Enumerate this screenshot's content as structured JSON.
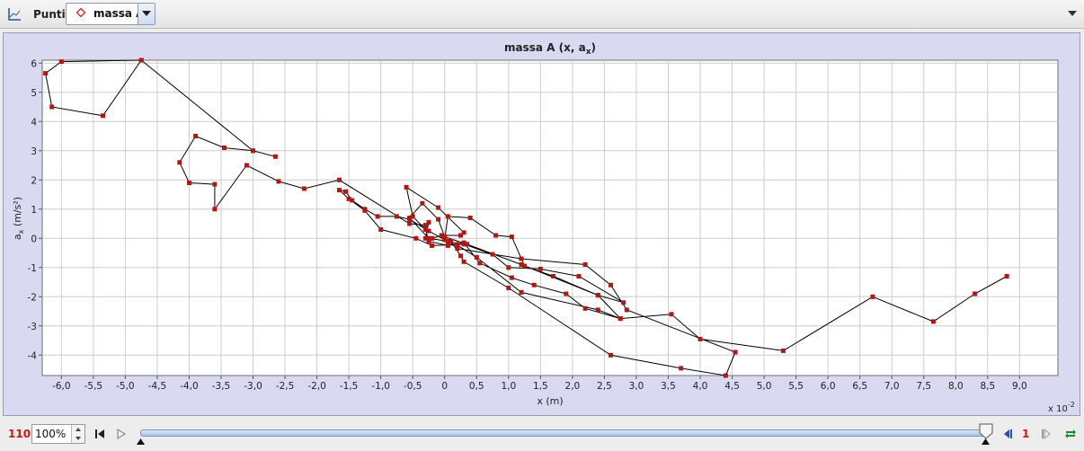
{
  "toolbar": {
    "plot_type_label": "Punti",
    "track_name": "massa A",
    "track_color": "#e02020"
  },
  "chart_data": {
    "type": "line",
    "title": "massa A (x, a",
    "title_sub": "x",
    "xlabel": "x (m)",
    "ylabel_main": "a",
    "ylabel_sub": "x",
    "ylabel_unit": " (m/s²)",
    "x_multiplier_label": "x 10",
    "x_multiplier_exp": "-2",
    "xlim": [
      -6.3,
      9.6
    ],
    "ylim": [
      -4.7,
      6.1
    ],
    "xticks": [
      -6.0,
      -5.5,
      -5.0,
      -4.5,
      -4.0,
      -3.5,
      -3.0,
      -2.5,
      -2.0,
      -1.5,
      -1.0,
      -0.5,
      0,
      0.5,
      1.0,
      1.5,
      2.0,
      2.5,
      3.0,
      3.5,
      4.0,
      4.5,
      5.0,
      5.5,
      6.0,
      6.5,
      7.0,
      7.5,
      8.0,
      8.5,
      9.0
    ],
    "xtick_labels": [
      "-6,0",
      "-5,5",
      "-5,0",
      "-4,5",
      "-4,0",
      "-3,5",
      "-3,0",
      "-2,5",
      "-2,0",
      "-1,5",
      "-1,0",
      "-0,5",
      "0",
      "0,5",
      "1,0",
      "1,5",
      "2,0",
      "2,5",
      "3,0",
      "3,5",
      "4,0",
      "4,5",
      "5,0",
      "5,5",
      "6,0",
      "6,5",
      "7,0",
      "7,5",
      "8,0",
      "8,5",
      "9,0"
    ],
    "yticks": [
      -4,
      -3,
      -2,
      -1,
      0,
      1,
      2,
      3,
      4,
      5,
      6
    ],
    "ytick_labels": [
      "-4",
      "-3",
      "-2",
      "-1",
      "0",
      "1",
      "2",
      "3",
      "4",
      "5",
      "6"
    ],
    "grid": true,
    "line_color": "#000000",
    "marker_color": "#b01818",
    "series": [
      {
        "x": [
          8.8,
          8.3,
          7.65,
          6.7,
          5.3,
          4.0,
          3.55,
          2.75,
          2.4,
          1.2,
          0.5,
          0.1,
          0.25,
          0.3,
          1.0,
          2.6,
          3.7,
          4.4,
          4.55,
          2.85,
          2.6,
          2.2,
          1.2,
          0.2,
          0.05,
          -0.25,
          -0.55,
          -0.35,
          -0.1,
          0.0,
          0.35,
          1.2,
          2.4,
          2.8,
          2.1,
          1.5,
          1.0,
          0.75,
          0.3,
          -0.2,
          -0.45,
          -1.0,
          -1.25,
          -1.5,
          -1.65,
          -1.55,
          -1.45,
          -1.25,
          -1.05,
          -0.75,
          -0.55,
          -0.25,
          0.0,
          0.05,
          0.4,
          0.8,
          1.05,
          1.25,
          1.7,
          2.4,
          2.75,
          2.2,
          1.9,
          1.4,
          1.05,
          0.55,
          0.3,
          0.2,
          0.05,
          -0.25,
          -0.3,
          -0.5,
          -0.6,
          -0.1,
          0.3,
          0.25,
          -0.05,
          -0.2,
          -0.3,
          -0.25,
          -0.3,
          -0.55,
          -1.65,
          -2.2,
          -2.6,
          -3.1,
          -3.6,
          -3.6,
          -4.0,
          -4.15,
          -3.9,
          -3.45,
          -3.0,
          -2.65,
          -3.0,
          -4.75,
          -5.35,
          -6.15,
          -6.25,
          -6.0,
          -4.75
        ],
        "y": [
          -1.3,
          -1.9,
          -2.85,
          -2.0,
          -3.85,
          -3.45,
          -2.6,
          -2.75,
          -2.45,
          -1.85,
          -0.65,
          -0.1,
          -0.6,
          -0.8,
          -1.7,
          -4.0,
          -4.45,
          -4.7,
          -3.9,
          -2.45,
          -1.6,
          -0.9,
          -0.7,
          -0.35,
          -0.1,
          0.0,
          0.7,
          1.2,
          0.65,
          0.05,
          -0.2,
          -0.9,
          -1.95,
          -2.2,
          -1.3,
          -1.05,
          -1.0,
          -0.55,
          -0.2,
          -0.25,
          0.0,
          0.3,
          0.95,
          1.35,
          1.65,
          1.6,
          1.3,
          1.0,
          0.75,
          0.75,
          0.65,
          0.25,
          -0.05,
          0.75,
          0.7,
          0.1,
          0.05,
          -0.95,
          -1.3,
          -1.95,
          -2.75,
          -2.4,
          -1.9,
          -1.6,
          -1.35,
          -0.85,
          -0.15,
          -0.2,
          -0.25,
          -0.1,
          0.3,
          0.75,
          1.75,
          1.05,
          0.2,
          0.1,
          0.1,
          0.0,
          0.0,
          0.55,
          0.45,
          0.5,
          2.0,
          1.7,
          1.95,
          2.5,
          1.0,
          1.85,
          1.9,
          2.6,
          3.5,
          3.1,
          3.0,
          2.8,
          3.0,
          6.1,
          4.2,
          4.5,
          5.65,
          6.05,
          6.1
        ]
      }
    ]
  },
  "player": {
    "frame_count": "110",
    "zoom": "100%",
    "step_size": "1",
    "slider_position": 0.99
  }
}
